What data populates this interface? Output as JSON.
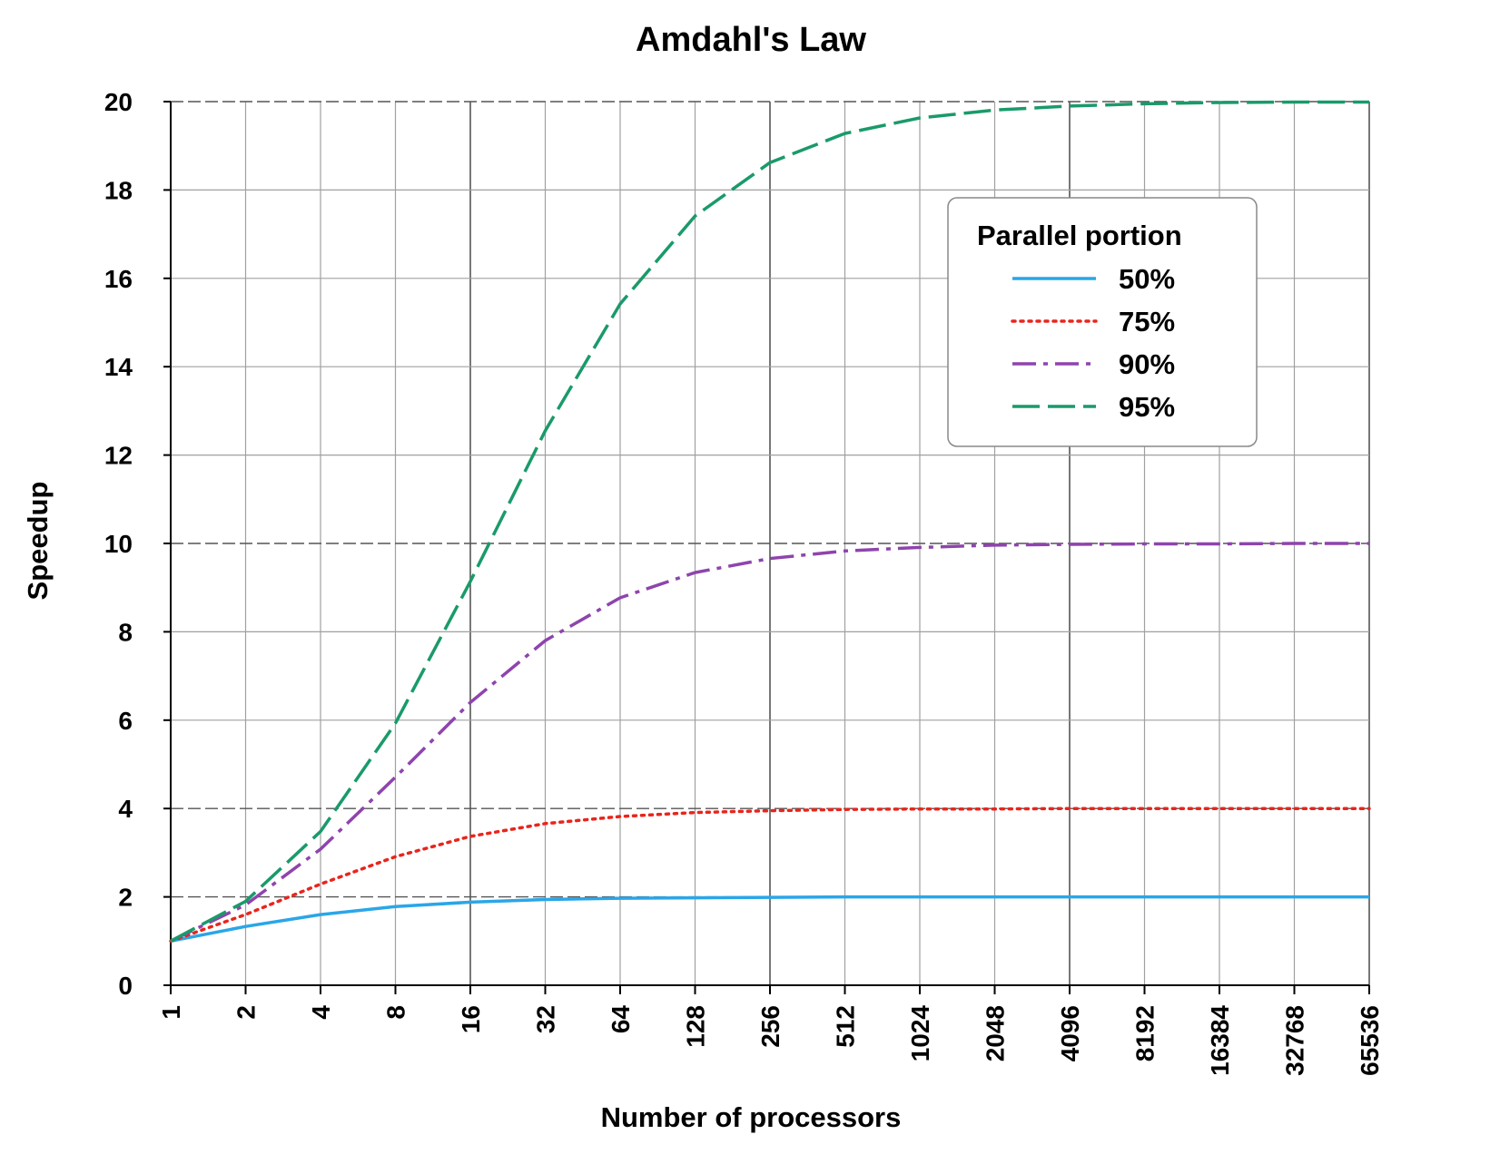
{
  "chart_data": {
    "type": "line",
    "title": "Amdahl's Law",
    "xlabel": "Number of processors",
    "ylabel": "Speedup",
    "x_scale": "log2",
    "categories": [
      "1",
      "2",
      "4",
      "8",
      "16",
      "32",
      "64",
      "128",
      "256",
      "512",
      "1024",
      "2048",
      "4096",
      "8192",
      "16384",
      "32768",
      "65536"
    ],
    "y_ticks": [
      "0",
      "2",
      "4",
      "6",
      "8",
      "10",
      "12",
      "14",
      "16",
      "18",
      "20"
    ],
    "ylim": [
      0,
      20
    ],
    "grid": true,
    "legend": {
      "title": "Parallel portion",
      "position": "top-right"
    },
    "series": [
      {
        "name": "50%",
        "color": "#2aa6e8",
        "style": "solid",
        "values": [
          1.0,
          1.33,
          1.6,
          1.78,
          1.88,
          1.94,
          1.97,
          1.98,
          1.99,
          2.0,
          2.0,
          2.0,
          2.0,
          2.0,
          2.0,
          2.0,
          2.0
        ]
      },
      {
        "name": "75%",
        "color": "#e8251c",
        "style": "dotted",
        "values": [
          1.0,
          1.6,
          2.29,
          2.91,
          3.37,
          3.66,
          3.82,
          3.91,
          3.95,
          3.98,
          3.99,
          3.99,
          4.0,
          4.0,
          4.0,
          4.0,
          4.0
        ]
      },
      {
        "name": "90%",
        "color": "#8e44ad",
        "style": "dashdot",
        "values": [
          1.0,
          1.82,
          3.08,
          4.71,
          6.4,
          7.8,
          8.77,
          9.34,
          9.66,
          9.83,
          9.91,
          9.96,
          9.98,
          9.99,
          9.99,
          10.0,
          10.0
        ]
      },
      {
        "name": "95%",
        "color": "#1a9a6a",
        "style": "dashed",
        "values": [
          1.0,
          1.9,
          3.48,
          5.93,
          9.14,
          12.55,
          15.42,
          17.41,
          18.62,
          19.28,
          19.63,
          19.81,
          19.9,
          19.95,
          19.98,
          19.99,
          19.99
        ]
      }
    ]
  }
}
